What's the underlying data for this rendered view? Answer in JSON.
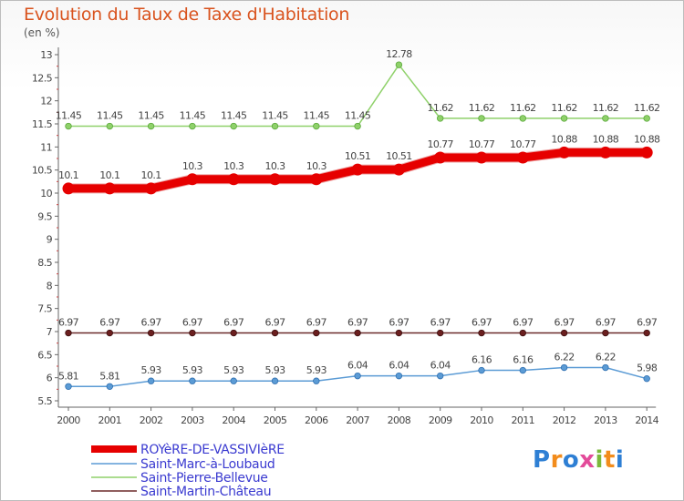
{
  "chart_data": {
    "type": "line",
    "title": "Evolution du Taux de Taxe d'Habitation",
    "ylabel": "(en %)",
    "xlabel": "",
    "ylim": [
      5.5,
      13
    ],
    "y_ticks": [
      "5.5",
      "6",
      "6.5",
      "7",
      "7.5",
      "8",
      "8.5",
      "9",
      "9.5",
      "10",
      "10.5",
      "11",
      "11.5",
      "12",
      "12.5",
      "13"
    ],
    "x": [
      "2000",
      "2001",
      "2002",
      "2003",
      "2004",
      "2005",
      "2006",
      "2007",
      "2008",
      "2009",
      "2010",
      "2011",
      "2012",
      "2013",
      "2014"
    ],
    "series": [
      {
        "name": "ROYèRE-DE-VASSIVIèRE",
        "color": "#e60000",
        "values": [
          10.1,
          10.1,
          10.1,
          10.3,
          10.3,
          10.3,
          10.3,
          10.51,
          10.51,
          10.77,
          10.77,
          10.77,
          10.88,
          10.88,
          10.88
        ],
        "labels": [
          "10.1",
          "10.1",
          "10.1",
          "10.3",
          "10.3",
          "10.3",
          "10.3",
          "10.51",
          "10.51",
          "10.77",
          "10.77",
          "10.77",
          "10.88",
          "10.88",
          "10.88"
        ]
      },
      {
        "name": "Saint-Marc-à-Loubaud",
        "color": "#5b9bd5",
        "values": [
          5.81,
          5.81,
          5.93,
          5.93,
          5.93,
          5.93,
          5.93,
          6.04,
          6.04,
          6.04,
          6.16,
          6.16,
          6.22,
          6.22,
          5.98
        ],
        "labels": [
          "5.81",
          "5.81",
          "5.93",
          "5.93",
          "5.93",
          "5.93",
          "5.93",
          "6.04",
          "6.04",
          "6.04",
          "6.16",
          "6.16",
          "6.22",
          "6.22",
          "5.98"
        ]
      },
      {
        "name": "Saint-Pierre-Bellevue",
        "color": "#8fd16a",
        "values": [
          11.45,
          11.45,
          11.45,
          11.45,
          11.45,
          11.45,
          11.45,
          11.45,
          12.78,
          11.62,
          11.62,
          11.62,
          11.62,
          11.62,
          11.62
        ],
        "labels": [
          "11.45",
          "11.45",
          "11.45",
          "11.45",
          "11.45",
          "11.45",
          "11.45",
          "11.45",
          "12.78",
          "11.62",
          "11.62",
          "11.62",
          "11.62",
          "11.62",
          "11.62"
        ]
      },
      {
        "name": "Saint-Martin-Château",
        "color": "#6b2a2a",
        "values": [
          6.97,
          6.97,
          6.97,
          6.97,
          6.97,
          6.97,
          6.97,
          6.97,
          6.97,
          6.97,
          6.97,
          6.97,
          6.97,
          6.97,
          6.97
        ],
        "labels": [
          "6.97",
          "6.97",
          "6.97",
          "6.97",
          "6.97",
          "6.97",
          "6.97",
          "6.97",
          "6.97",
          "6.97",
          "6.97",
          "6.97",
          "6.97",
          "6.97",
          "6.97"
        ]
      }
    ],
    "grid": false,
    "legend": "bottom-left"
  },
  "logo": {
    "letters": [
      "P",
      "r",
      "o",
      "x",
      "i",
      "t",
      "i"
    ],
    "colors": [
      "#2e7fd4",
      "#f28c1c",
      "#2e7fd4",
      "#e34b9a",
      "#7cb93b",
      "#f28c1c",
      "#2e7fd4"
    ]
  }
}
